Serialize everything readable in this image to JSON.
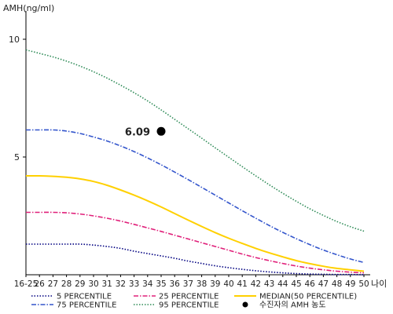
{
  "chart_data": {
    "type": "line",
    "ylabel": "AMH(ng/ml)",
    "xlabel": "나이",
    "ylim": [
      0,
      11
    ],
    "yticks": [
      5,
      10
    ],
    "x_tick_labels": [
      "16-25",
      "26",
      "27",
      "28",
      "29",
      "30",
      "31",
      "32",
      "33",
      "34",
      "35",
      "36",
      "37",
      "38",
      "39",
      "40",
      "41",
      "42",
      "43",
      "44",
      "45",
      "46",
      "47",
      "48",
      "49",
      "50"
    ],
    "grid": false,
    "series": [
      {
        "name": "5 PERCENTILE",
        "color": "#000080",
        "style": "dotted",
        "values": [
          1.3,
          1.3,
          1.3,
          1.3,
          1.3,
          1.26,
          1.2,
          1.12,
          1.0,
          0.9,
          0.8,
          0.7,
          0.58,
          0.48,
          0.38,
          0.3,
          0.23,
          0.17,
          0.12,
          0.08,
          0.05,
          0.03,
          0.02,
          0.01,
          0.01,
          0.0
        ]
      },
      {
        "name": "25 PERCENTILE",
        "color": "#e0207a",
        "style": "dashdot",
        "values": [
          2.65,
          2.65,
          2.65,
          2.63,
          2.58,
          2.5,
          2.4,
          2.28,
          2.14,
          1.99,
          1.84,
          1.68,
          1.52,
          1.36,
          1.2,
          1.04,
          0.88,
          0.73,
          0.6,
          0.48,
          0.37,
          0.28,
          0.21,
          0.15,
          0.11,
          0.08
        ]
      },
      {
        "name": "MEDIAN(50 PERCENTILE)",
        "color": "#ffd000",
        "style": "solid",
        "values": [
          4.2,
          4.2,
          4.18,
          4.14,
          4.07,
          3.96,
          3.8,
          3.6,
          3.38,
          3.14,
          2.88,
          2.6,
          2.32,
          2.05,
          1.79,
          1.55,
          1.33,
          1.12,
          0.93,
          0.76,
          0.6,
          0.47,
          0.36,
          0.27,
          0.21,
          0.15
        ]
      },
      {
        "name": "75 PERCENTILE",
        "color": "#3355cc",
        "style": "dashdot",
        "values": [
          6.15,
          6.15,
          6.15,
          6.1,
          6.0,
          5.85,
          5.68,
          5.47,
          5.23,
          4.96,
          4.67,
          4.36,
          4.04,
          3.71,
          3.38,
          3.05,
          2.72,
          2.4,
          2.09,
          1.8,
          1.53,
          1.28,
          1.05,
          0.85,
          0.67,
          0.52
        ]
      },
      {
        "name": "95 PERCENTILE",
        "color": "#2e8b57",
        "style": "dotted",
        "values": [
          9.55,
          9.4,
          9.25,
          9.07,
          8.86,
          8.62,
          8.35,
          8.05,
          7.73,
          7.38,
          7.0,
          6.6,
          6.2,
          5.8,
          5.39,
          4.99,
          4.59,
          4.2,
          3.82,
          3.46,
          3.12,
          2.8,
          2.52,
          2.26,
          2.04,
          1.85
        ]
      }
    ],
    "highlight": {
      "name": "수진자의 AMH 농도",
      "x": "35",
      "y": 6.09,
      "label": "6.09",
      "color": "#000000"
    },
    "legend_placement": "bottom"
  }
}
